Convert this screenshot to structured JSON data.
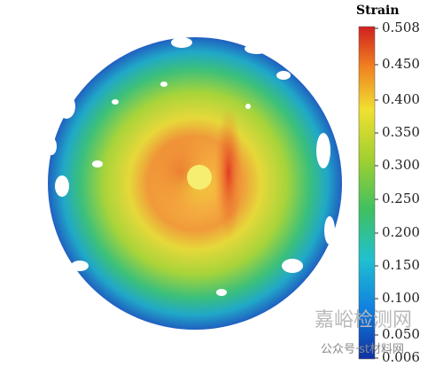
{
  "colorbar": {
    "title": "Strain",
    "ticks": [
      "0.508",
      "0.450",
      "0.400",
      "0.350",
      "0.300",
      "0.250",
      "0.200",
      "0.150",
      "0.100",
      "0.050",
      "0.006"
    ]
  },
  "watermark": {
    "site": "嘉峪检测网",
    "account": "公众号·st材料网"
  }
}
